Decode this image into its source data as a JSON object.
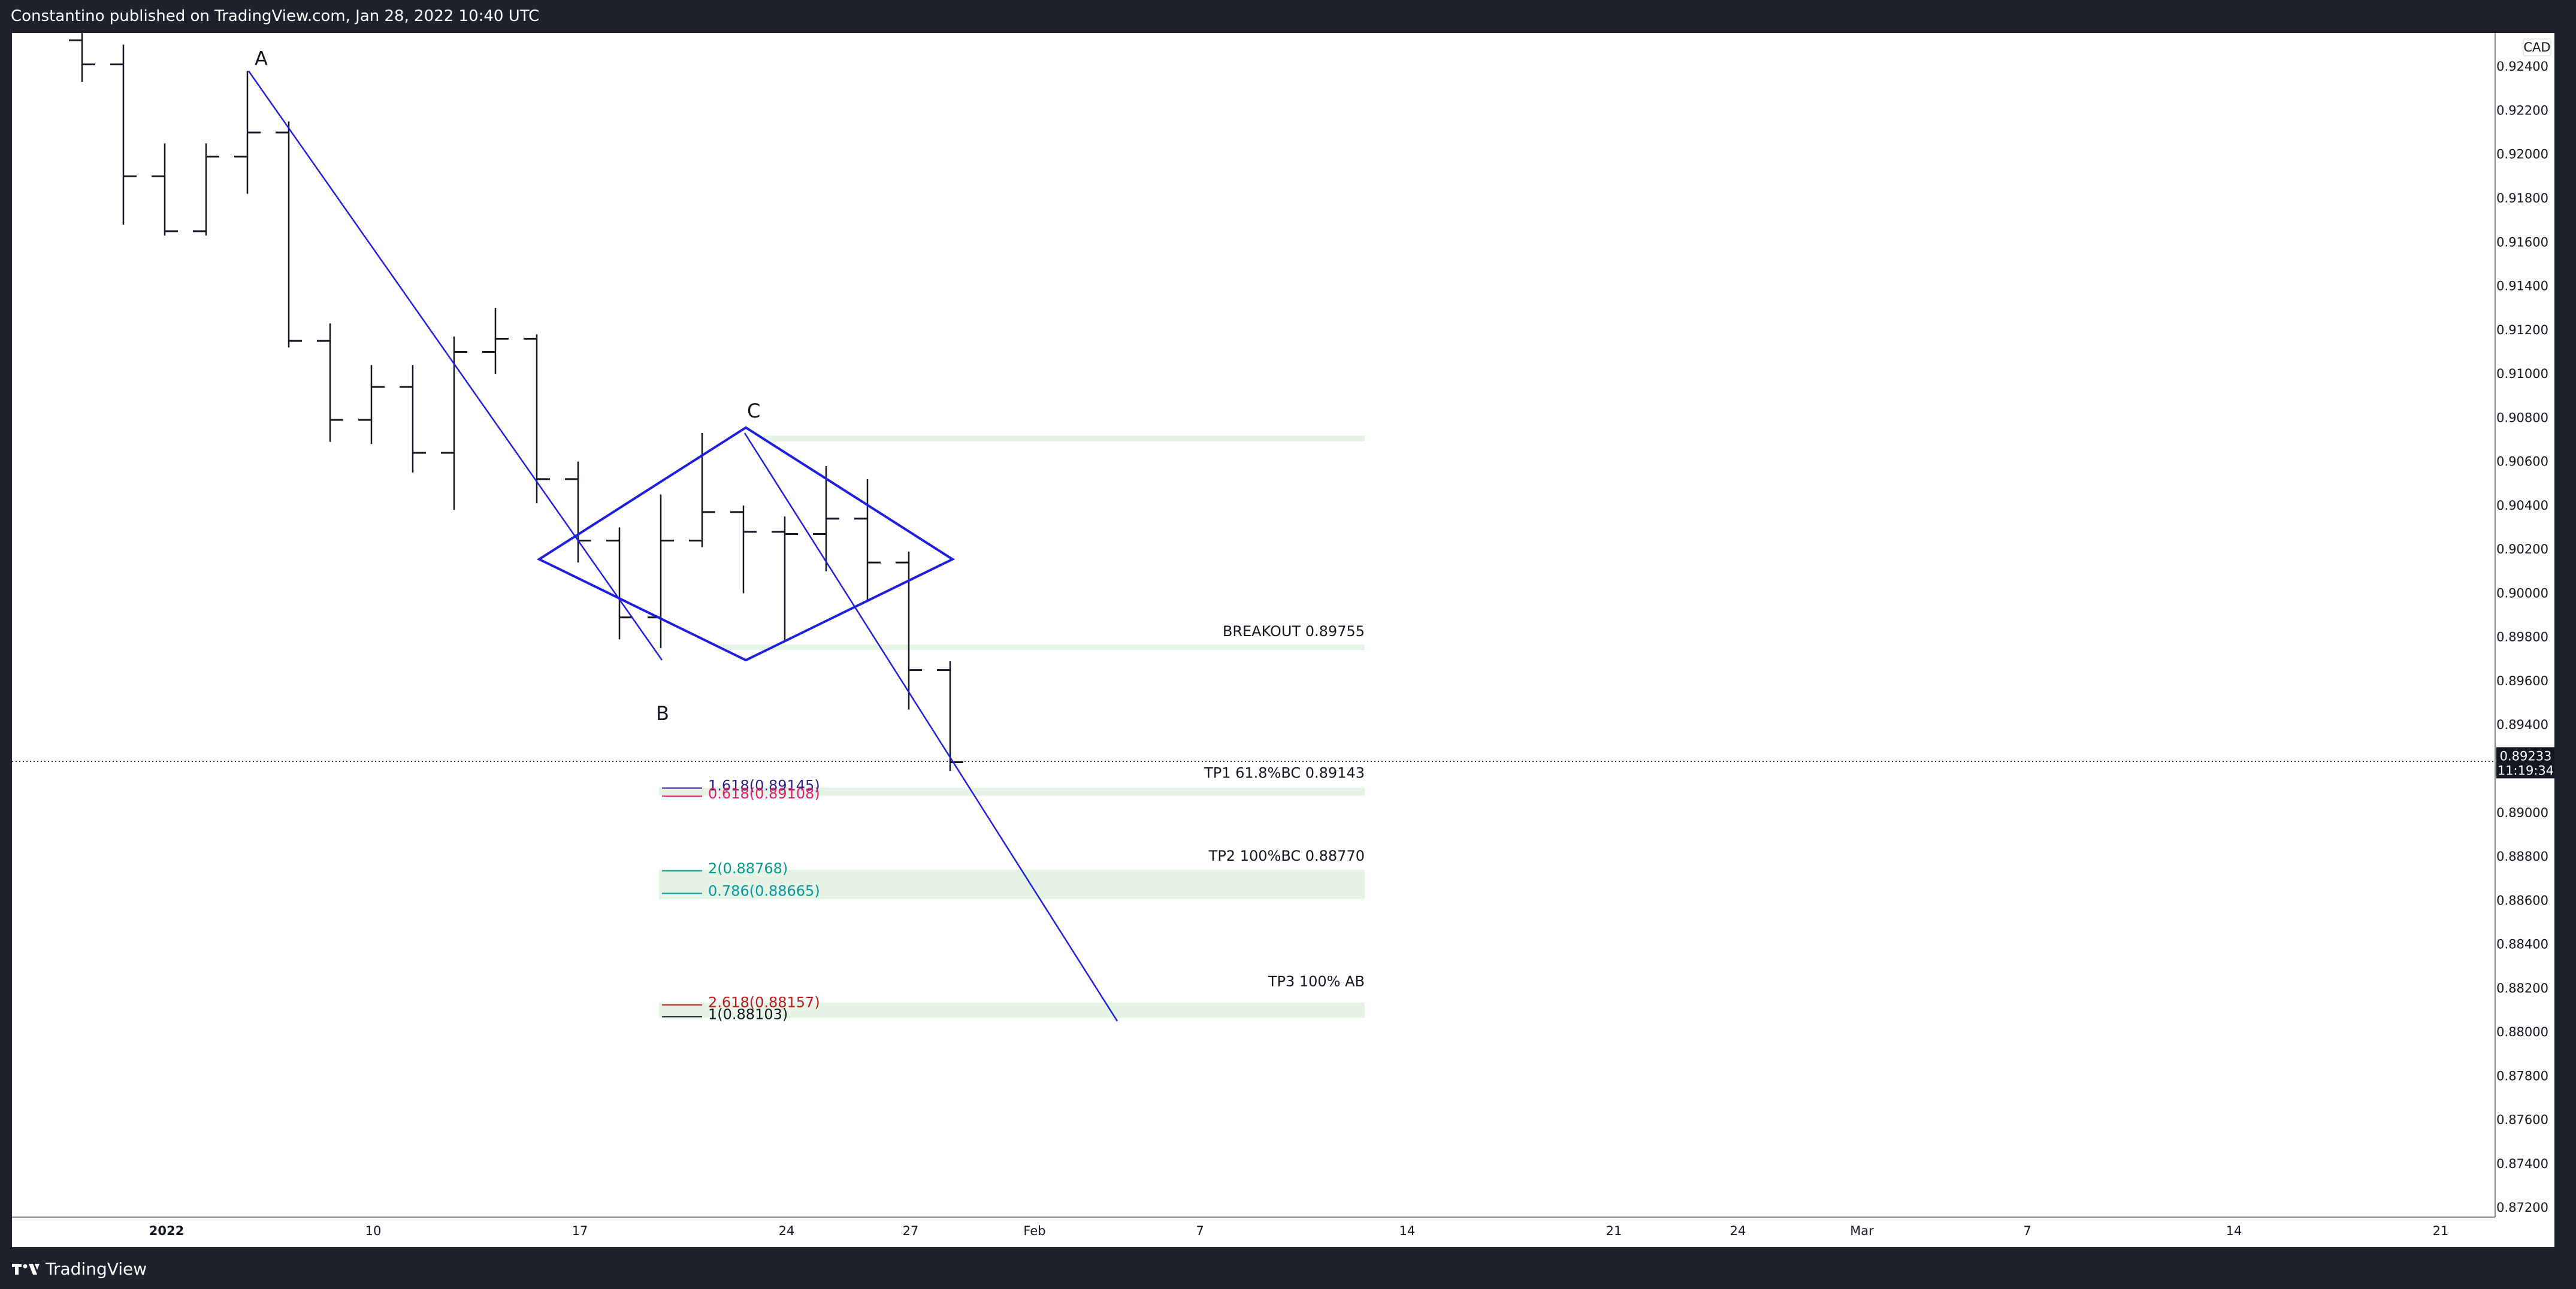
{
  "header": {
    "published_text": "Constantino published on TradingView.com, Jan 28, 2022 10:40 UTC"
  },
  "footer": {
    "brand": "TradingView"
  },
  "chart_data": {
    "type": "bar",
    "title": "",
    "currency": "CAD",
    "xlabel": "",
    "ylabel": "",
    "ylim": [
      0.8712,
      0.9246
    ],
    "grid": false,
    "y_ticks": [
      "0.92400",
      "0.92200",
      "0.92000",
      "0.91800",
      "0.91600",
      "0.91400",
      "0.91200",
      "0.91000",
      "0.90800",
      "0.90600",
      "0.90400",
      "0.90200",
      "0.90000",
      "0.89800",
      "0.89600",
      "0.89400",
      "0.89200",
      "0.89000",
      "0.88800",
      "0.88600",
      "0.88400",
      "0.88200",
      "0.88000",
      "0.87800",
      "0.87600",
      "0.87400",
      "0.87200"
    ],
    "x_ticks": [
      "2022",
      "10",
      "17",
      "24",
      "27",
      "Feb",
      "7",
      "14",
      "21",
      "24",
      "Mar",
      "7",
      "14",
      "21"
    ],
    "last_price": {
      "label": "0.89233",
      "countdown": "11:19:34",
      "value": 0.89233
    },
    "ohlc_bars": [
      {
        "o": 0.9252,
        "h": 0.926,
        "l": 0.9233,
        "c": 0.9241
      },
      {
        "o": 0.9241,
        "h": 0.925,
        "l": 0.9168,
        "c": 0.919
      },
      {
        "o": 0.919,
        "h": 0.9205,
        "l": 0.9163,
        "c": 0.9165
      },
      {
        "o": 0.9165,
        "h": 0.9205,
        "l": 0.9163,
        "c": 0.9199
      },
      {
        "o": 0.9199,
        "h": 0.9238,
        "l": 0.9182,
        "c": 0.921
      },
      {
        "o": 0.921,
        "h": 0.9215,
        "l": 0.9112,
        "c": 0.9115
      },
      {
        "o": 0.9115,
        "h": 0.9123,
        "l": 0.9069,
        "c": 0.9079
      },
      {
        "o": 0.9079,
        "h": 0.9104,
        "l": 0.9068,
        "c": 0.9094
      },
      {
        "o": 0.9094,
        "h": 0.9104,
        "l": 0.9055,
        "c": 0.9064
      },
      {
        "o": 0.9064,
        "h": 0.9117,
        "l": 0.9038,
        "c": 0.911
      },
      {
        "o": 0.911,
        "h": 0.913,
        "l": 0.91,
        "c": 0.9116
      },
      {
        "o": 0.9116,
        "h": 0.9118,
        "l": 0.9041,
        "c": 0.9052
      },
      {
        "o": 0.9052,
        "h": 0.906,
        "l": 0.9014,
        "c": 0.9024
      },
      {
        "o": 0.9024,
        "h": 0.903,
        "l": 0.8979,
        "c": 0.8989
      },
      {
        "o": 0.8989,
        "h": 0.9045,
        "l": 0.8975,
        "c": 0.9024
      },
      {
        "o": 0.9024,
        "h": 0.9073,
        "l": 0.9021,
        "c": 0.9037
      },
      {
        "o": 0.9037,
        "h": 0.904,
        "l": 0.9,
        "c": 0.9028
      },
      {
        "o": 0.9028,
        "h": 0.9035,
        "l": 0.8978,
        "c": 0.9027
      },
      {
        "o": 0.9027,
        "h": 0.9058,
        "l": 0.901,
        "c": 0.9034
      },
      {
        "o": 0.9034,
        "h": 0.9052,
        "l": 0.8996,
        "c": 0.9014
      },
      {
        "o": 0.9014,
        "h": 0.9019,
        "l": 0.8947,
        "c": 0.8965
      },
      {
        "o": 0.8965,
        "h": 0.8969,
        "l": 0.8919,
        "c": 0.8923
      }
    ],
    "annotations": {
      "pattern_points": [
        {
          "label": "A",
          "bar": 4,
          "price": 0.9238
        },
        {
          "label": "B",
          "bar": 14,
          "price": 0.8975
        },
        {
          "label": "C",
          "bar": 16,
          "price": 0.9073
        }
      ],
      "labels": {
        "breakout": "BREAKOUT  0.89755",
        "tp1": "TP1 61.8%BC    0.89143",
        "tp2": "TP2 100%BC  0.88770",
        "tp3": "TP3 100% AB"
      },
      "breakout_price": 0.89755,
      "tp1_price": 0.89143,
      "tp2_price": 0.8877,
      "tp3_price": 0.88103,
      "upper_zone_price": 0.90705,
      "fib_levels": [
        {
          "label": "1.618(0.89145)",
          "value": 0.89145,
          "color": "#311b92"
        },
        {
          "label": "0.618(0.89108)",
          "value": 0.89108,
          "color": "#e91e63"
        },
        {
          "label": "2(0.88768)",
          "value": 0.88768,
          "color": "#089981"
        },
        {
          "label": "0.786(0.88665)",
          "value": 0.88665,
          "color": "#0097a7"
        },
        {
          "label": "2.618(0.88157)",
          "value": 0.88157,
          "color": "#b71c1c"
        },
        {
          "label": "1(0.88103)",
          "value": 0.88103,
          "color": "#131722"
        }
      ]
    },
    "colors": {
      "bars": "#131722",
      "pattern": "#1e1ee0",
      "zone": "#e6f4e6",
      "background": "#ffffff",
      "chrome": "#1e222d"
    }
  }
}
